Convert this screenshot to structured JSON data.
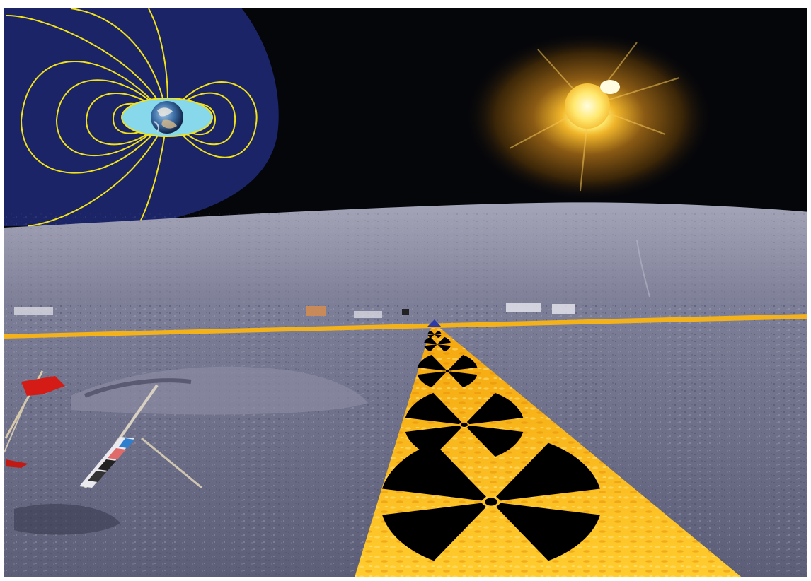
{
  "scene": {
    "colors": {
      "frame": "#ffffff",
      "sky": "#05060a",
      "magnetosphere": "#1b2466",
      "field_lines": "#f2e21a",
      "radiation_belt": "#86d8ea",
      "sun_core": "#fff27a",
      "sun_glow": "#c98a1c",
      "lunar_surface": "#6d6f88",
      "lunar_hills": "#9394a8",
      "horizon_beam": "#f4b21a",
      "radiation_path": "#f7b516",
      "trefoil": "#000000"
    },
    "elements": {
      "earth": "earth-icon",
      "sun": "sun-icon",
      "radiation_symbol": "radiation-trefoil-icon",
      "flag": "flag-icon",
      "scale_bar": "gnomon-scale-bar-icon"
    },
    "trefoil_count": 5
  }
}
